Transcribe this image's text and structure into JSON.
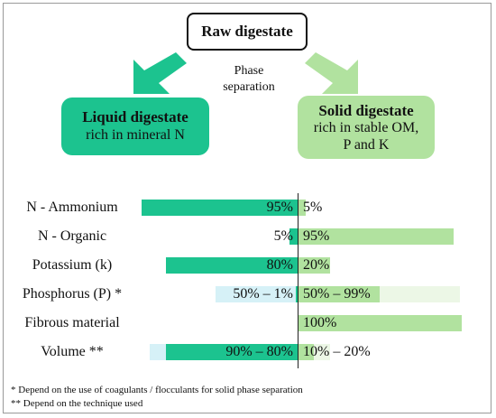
{
  "top": {
    "raw": "Raw digestate",
    "phase_line1": "Phase",
    "phase_line2": "separation"
  },
  "liquid": {
    "title": "Liquid digestate",
    "subtitle": "rich in mineral N"
  },
  "solid": {
    "title": "Solid digestate",
    "line1": "rich in stable OM,",
    "line2": "P and K"
  },
  "colors": {
    "liquid": "#1cc38f",
    "liquid_light": "#d6f1f7",
    "solid": "#b1e29f",
    "solid_light": "#ecf7e6"
  },
  "chart_data": {
    "type": "bar",
    "orientation": "diverging-horizontal",
    "categories": [
      "N - Ammonium",
      "N - Organic",
      "Potassium (k)",
      "Phosphorus (P) *",
      "Fibrous material",
      "Volume **"
    ],
    "series": [
      {
        "name": "Liquid digestate",
        "values": [
          95,
          5,
          80,
          1,
          0,
          80
        ],
        "range_max": [
          95,
          5,
          80,
          50,
          0,
          90
        ],
        "labels": [
          "95%",
          "5%",
          "80%",
          "50% – 1%",
          "",
          "90% – 80%"
        ]
      },
      {
        "name": "Solid digestate",
        "values": [
          5,
          95,
          20,
          50,
          100,
          10
        ],
        "range_max": [
          5,
          95,
          20,
          99,
          100,
          20
        ],
        "labels": [
          "5%",
          "95%",
          "20%",
          "50% – 99%",
          "100%",
          "10% – 20%"
        ]
      }
    ],
    "xlim": [
      -100,
      100
    ]
  },
  "footnotes": {
    "f1": "* Depend on the use of coagulants / flocculants for solid phase separation",
    "f2": "** Depend on the technique used"
  }
}
